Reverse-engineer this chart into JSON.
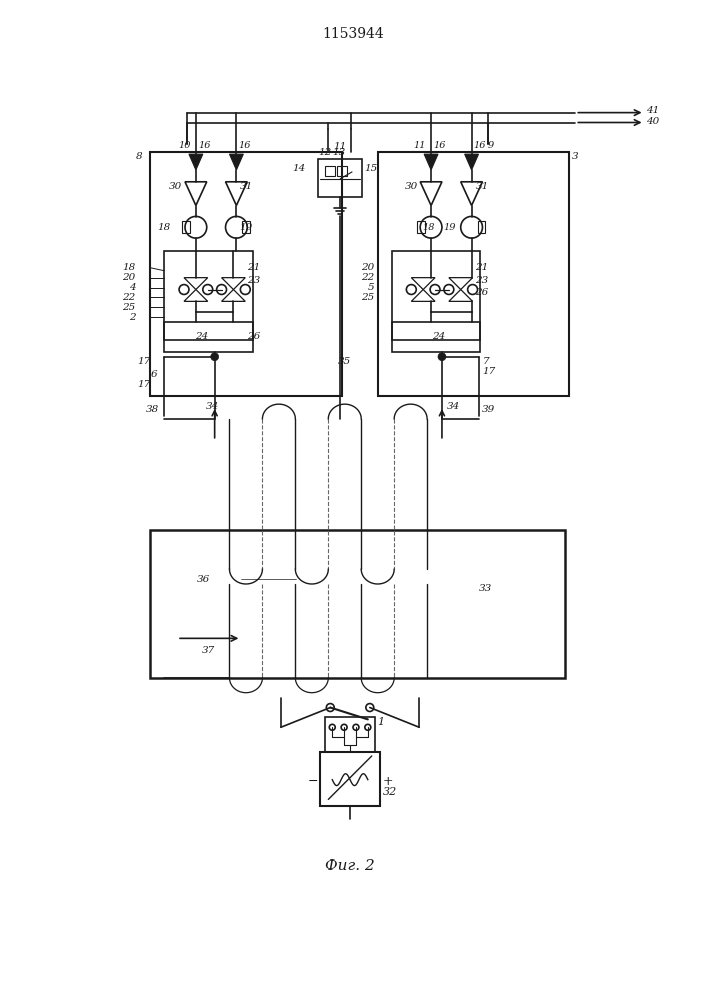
{
  "title": "1153944",
  "caption": "Фиг. 2",
  "bg": "#ffffff",
  "lc": "#1a1a1a",
  "lw": 1.2
}
